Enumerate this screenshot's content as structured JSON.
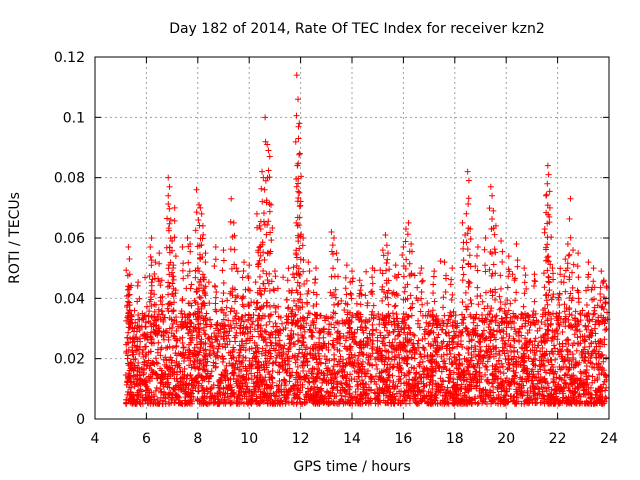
{
  "chart_data": {
    "type": "scatter",
    "title": "Day 182 of 2014, Rate Of TEC Index for receiver kzn2",
    "xlabel": "GPS time / hours",
    "ylabel": "ROTI / TECUs",
    "xlim": [
      4,
      24
    ],
    "ylim": [
      0,
      0.12
    ],
    "x_ticks": [
      4,
      6,
      8,
      10,
      12,
      14,
      16,
      18,
      20,
      22,
      24
    ],
    "y_ticks": [
      0,
      0.02,
      0.04,
      0.06,
      0.08,
      0.1,
      0.12
    ],
    "x_tick_labels": [
      "4",
      "6",
      "8",
      "10",
      "12",
      "14",
      "16",
      "18",
      "20",
      "22",
      "24"
    ],
    "y_tick_labels": [
      "0",
      "0.02",
      "0.04",
      "0.06",
      "0.08",
      "0.1",
      "0.12"
    ],
    "grid": true,
    "marker": "plus",
    "series_color": "#ff0000",
    "x_range_of_data": [
      5.2,
      23.9
    ],
    "baseline_range": [
      0.005,
      0.035
    ],
    "series": [
      {
        "name": "ROTI",
        "points": [
          [
            5.3,
            0.057
          ],
          [
            5.35,
            0.048
          ],
          [
            5.3,
            0.044
          ],
          [
            5.32,
            0.043
          ],
          [
            5.4,
            0.033
          ],
          [
            6.15,
            0.057
          ],
          [
            6.2,
            0.06
          ],
          [
            6.5,
            0.055
          ],
          [
            6.6,
            0.046
          ],
          [
            6.35,
            0.052
          ],
          [
            6.85,
            0.08
          ],
          [
            6.9,
            0.077
          ],
          [
            6.85,
            0.074
          ],
          [
            6.95,
            0.066
          ],
          [
            7.0,
            0.059
          ],
          [
            7.1,
            0.07
          ],
          [
            7.05,
            0.051
          ],
          [
            7.4,
            0.057
          ],
          [
            7.6,
            0.06
          ],
          [
            7.7,
            0.058
          ],
          [
            7.95,
            0.076
          ],
          [
            8.05,
            0.071
          ],
          [
            8.1,
            0.07
          ],
          [
            8.15,
            0.068
          ],
          [
            8.2,
            0.064
          ],
          [
            8.3,
            0.055
          ],
          [
            8.0,
            0.05
          ],
          [
            8.25,
            0.047
          ],
          [
            8.7,
            0.057
          ],
          [
            9.0,
            0.056
          ],
          [
            9.3,
            0.073
          ],
          [
            9.4,
            0.065
          ],
          [
            9.5,
            0.05
          ],
          [
            9.8,
            0.052
          ],
          [
            10.0,
            0.051
          ],
          [
            10.3,
            0.068
          ],
          [
            10.4,
            0.064
          ],
          [
            10.45,
            0.063
          ],
          [
            10.5,
            0.082
          ],
          [
            10.55,
            0.08
          ],
          [
            10.6,
            0.076
          ],
          [
            10.62,
            0.1
          ],
          [
            10.7,
            0.091
          ],
          [
            10.75,
            0.089
          ],
          [
            10.8,
            0.087
          ],
          [
            10.85,
            0.071
          ],
          [
            11.0,
            0.049
          ],
          [
            11.5,
            0.046
          ],
          [
            11.7,
            0.048
          ],
          [
            11.85,
            0.114
          ],
          [
            11.9,
            0.106
          ],
          [
            11.95,
            0.098
          ],
          [
            11.92,
            0.093
          ],
          [
            11.97,
            0.088
          ],
          [
            11.88,
            0.084
          ],
          [
            11.85,
            0.077
          ],
          [
            11.95,
            0.075
          ],
          [
            12.1,
            0.06
          ],
          [
            12.3,
            0.052
          ],
          [
            12.6,
            0.05
          ],
          [
            13.2,
            0.062
          ],
          [
            13.3,
            0.06
          ],
          [
            13.4,
            0.055
          ],
          [
            13.8,
            0.051
          ],
          [
            14.0,
            0.049
          ],
          [
            14.3,
            0.046
          ],
          [
            14.8,
            0.05
          ],
          [
            15.2,
            0.056
          ],
          [
            15.3,
            0.061
          ],
          [
            15.4,
            0.055
          ],
          [
            15.7,
            0.051
          ],
          [
            16.0,
            0.057
          ],
          [
            16.1,
            0.063
          ],
          [
            16.2,
            0.065
          ],
          [
            16.3,
            0.058
          ],
          [
            16.7,
            0.05
          ],
          [
            17.2,
            0.049
          ],
          [
            17.6,
            0.052
          ],
          [
            17.9,
            0.05
          ],
          [
            18.3,
            0.065
          ],
          [
            18.4,
            0.061
          ],
          [
            18.5,
            0.082
          ],
          [
            18.55,
            0.079
          ],
          [
            18.6,
            0.063
          ],
          [
            18.9,
            0.057
          ],
          [
            19.2,
            0.06
          ],
          [
            19.4,
            0.077
          ],
          [
            19.45,
            0.074
          ],
          [
            19.5,
            0.069
          ],
          [
            19.6,
            0.064
          ],
          [
            19.8,
            0.059
          ],
          [
            20.1,
            0.054
          ],
          [
            20.4,
            0.058
          ],
          [
            20.7,
            0.05
          ],
          [
            21.1,
            0.048
          ],
          [
            21.5,
            0.063
          ],
          [
            21.55,
            0.074
          ],
          [
            21.6,
            0.078
          ],
          [
            21.62,
            0.084
          ],
          [
            21.65,
            0.081
          ],
          [
            21.7,
            0.07
          ],
          [
            21.8,
            0.05
          ],
          [
            22.1,
            0.048
          ],
          [
            22.3,
            0.053
          ],
          [
            22.4,
            0.058
          ],
          [
            22.5,
            0.073
          ],
          [
            22.6,
            0.056
          ],
          [
            22.8,
            0.055
          ],
          [
            23.2,
            0.052
          ],
          [
            23.4,
            0.05
          ],
          [
            23.7,
            0.049
          ],
          [
            23.8,
            0.046
          ],
          [
            23.9,
            0.044
          ]
        ]
      }
    ]
  }
}
